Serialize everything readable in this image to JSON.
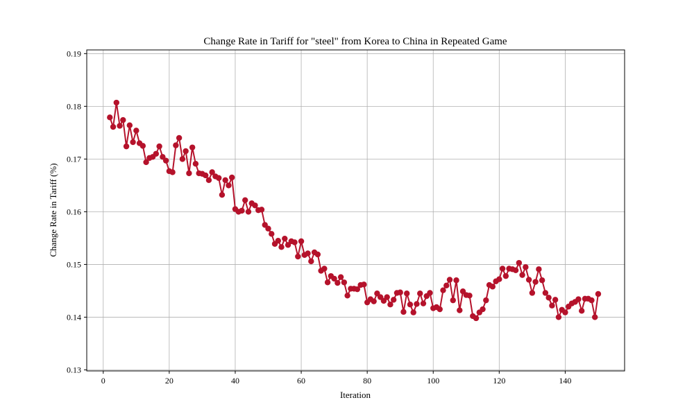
{
  "chart_data": {
    "type": "line",
    "title": "Change Rate in Tariff for \"steel\" from Korea to China in Repeated Game",
    "xlabel": "Iteration",
    "ylabel": "Change Rate in Tariff (%)",
    "xlim": [
      -5,
      158
    ],
    "ylim": [
      0.1298,
      0.1907
    ],
    "xticks": [
      0,
      20,
      40,
      60,
      80,
      100,
      120,
      140
    ],
    "yticks": [
      0.13,
      0.14,
      0.15,
      0.16,
      0.17,
      0.18,
      0.19
    ],
    "grid": true,
    "line_color": "#b5122b",
    "series": [
      {
        "x": [
          2,
          3,
          4,
          5,
          6,
          7,
          8,
          9,
          10,
          11,
          12,
          13,
          14,
          15,
          16,
          17,
          18,
          19,
          20,
          21,
          22,
          23,
          24,
          25,
          26,
          27,
          28,
          29,
          30,
          31,
          32,
          33,
          34,
          35,
          36,
          37,
          38,
          39,
          40,
          41,
          42,
          43,
          44,
          45,
          46,
          47,
          48,
          49,
          50,
          51,
          52,
          53,
          54,
          55,
          56,
          57,
          58,
          59,
          60,
          61,
          62,
          63,
          64,
          65,
          66,
          67,
          68,
          69,
          70,
          71,
          72,
          73,
          74,
          75,
          76,
          77,
          78,
          79,
          80,
          81,
          82,
          83,
          84,
          85,
          86,
          87,
          88,
          89,
          90,
          91,
          92,
          93,
          94,
          95,
          96,
          97,
          98,
          99,
          100,
          101,
          102,
          103,
          104,
          105,
          106,
          107,
          108,
          109,
          110,
          111,
          112,
          113,
          114,
          115,
          116,
          117,
          118,
          119,
          120,
          121,
          122,
          123,
          124,
          125,
          126,
          127,
          128,
          129,
          130,
          131,
          132,
          133,
          134,
          135,
          136,
          137,
          138,
          139,
          140,
          141,
          142,
          143,
          144,
          145,
          146,
          147,
          148,
          149,
          150
        ],
        "values": [
          0.1779,
          0.1761,
          0.1807,
          0.1763,
          0.1774,
          0.1724,
          0.1764,
          0.1732,
          0.1754,
          0.173,
          0.1725,
          0.1694,
          0.1702,
          0.1704,
          0.171,
          0.1724,
          0.1704,
          0.1697,
          0.1677,
          0.1675,
          0.1726,
          0.174,
          0.17,
          0.1715,
          0.1673,
          0.1722,
          0.1691,
          0.1673,
          0.1672,
          0.1669,
          0.166,
          0.1675,
          0.1667,
          0.1664,
          0.1632,
          0.166,
          0.165,
          0.1665,
          0.1605,
          0.16,
          0.1602,
          0.1622,
          0.16,
          0.1616,
          0.1612,
          0.1603,
          0.1604,
          0.1575,
          0.1568,
          0.1558,
          0.1539,
          0.1545,
          0.1533,
          0.1549,
          0.1537,
          0.1544,
          0.1542,
          0.1515,
          0.1544,
          0.1518,
          0.1521,
          0.1506,
          0.1523,
          0.1519,
          0.1488,
          0.1492,
          0.1466,
          0.1478,
          0.1473,
          0.1465,
          0.1476,
          0.1466,
          0.1441,
          0.1454,
          0.1454,
          0.1453,
          0.1461,
          0.1462,
          0.1428,
          0.1434,
          0.143,
          0.1445,
          0.1438,
          0.1431,
          0.1438,
          0.1424,
          0.1433,
          0.1446,
          0.1447,
          0.141,
          0.1445,
          0.1424,
          0.1409,
          0.1425,
          0.1445,
          0.1426,
          0.144,
          0.1446,
          0.1417,
          0.1419,
          0.1415,
          0.1451,
          0.146,
          0.1471,
          0.1432,
          0.147,
          0.1413,
          0.1449,
          0.1442,
          0.1441,
          0.1402,
          0.1398,
          0.1409,
          0.1415,
          0.1432,
          0.1461,
          0.1458,
          0.1468,
          0.1472,
          0.1492,
          0.1478,
          0.1492,
          0.1491,
          0.1489,
          0.1503,
          0.148,
          0.1495,
          0.1471,
          0.1446,
          0.1467,
          0.1491,
          0.147,
          0.1446,
          0.1437,
          0.1422,
          0.1433,
          0.14,
          0.1414,
          0.1409,
          0.142,
          0.1426,
          0.1429,
          0.1434,
          0.1412,
          0.1435,
          0.1435,
          0.1432,
          0.14,
          0.1444
        ]
      }
    ]
  }
}
